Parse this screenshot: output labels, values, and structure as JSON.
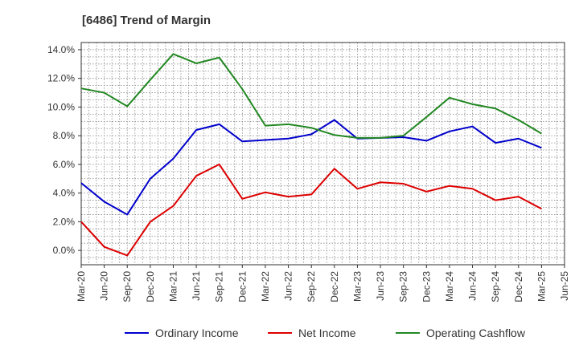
{
  "chart_data": {
    "type": "line",
    "title": "[6486]  Trend of Margin",
    "xlabel": "",
    "ylabel": "",
    "x": [
      "Mar-20",
      "Jun-20",
      "Sep-20",
      "Dec-20",
      "Mar-21",
      "Jun-21",
      "Sep-21",
      "Dec-21",
      "Mar-22",
      "Jun-22",
      "Sep-22",
      "Dec-22",
      "Mar-23",
      "Jun-23",
      "Sep-23",
      "Dec-23",
      "Mar-24",
      "Jun-24",
      "Sep-24",
      "Dec-24",
      "Mar-25"
    ],
    "x_ticks": [
      "Mar-20",
      "Jun-20",
      "Sep-20",
      "Dec-20",
      "Mar-21",
      "Jun-21",
      "Sep-21",
      "Dec-21",
      "Mar-22",
      "Jun-22",
      "Sep-22",
      "Dec-22",
      "Mar-23",
      "Jun-23",
      "Sep-23",
      "Dec-23",
      "Mar-24",
      "Jun-24",
      "Sep-24",
      "Dec-24",
      "Mar-25",
      "Jun-25"
    ],
    "ylim": [
      -1.0,
      14.5
    ],
    "y_ticks": [
      0,
      2,
      4,
      6,
      8,
      10,
      12,
      14
    ],
    "y_tick_labels": [
      "0.0%",
      "2.0%",
      "4.0%",
      "6.0%",
      "8.0%",
      "10.0%",
      "12.0%",
      "14.0%"
    ],
    "grid": true,
    "legend_position": "bottom",
    "series": [
      {
        "name": "Ordinary Income",
        "color": "#0000cc",
        "values": [
          4.7,
          3.4,
          2.5,
          5.0,
          6.4,
          8.4,
          8.8,
          7.6,
          7.7,
          7.8,
          8.1,
          9.1,
          7.8,
          7.85,
          7.9,
          7.65,
          8.3,
          8.65,
          7.5,
          7.8,
          7.15
        ]
      },
      {
        "name": "Net Income",
        "color": "#dd0000",
        "values": [
          2.0,
          0.25,
          -0.35,
          2.0,
          3.1,
          5.2,
          6.0,
          3.6,
          4.05,
          3.75,
          3.9,
          5.7,
          4.3,
          4.75,
          4.65,
          4.1,
          4.5,
          4.3,
          3.5,
          3.75,
          2.9
        ]
      },
      {
        "name": "Operating Cashflow",
        "color": "#228822",
        "values": [
          11.3,
          11.0,
          10.05,
          11.9,
          13.7,
          13.05,
          13.45,
          11.25,
          8.7,
          8.8,
          8.55,
          8.05,
          7.85,
          7.85,
          8.0,
          9.3,
          10.65,
          10.2,
          9.9,
          9.1,
          8.15
        ]
      }
    ]
  }
}
